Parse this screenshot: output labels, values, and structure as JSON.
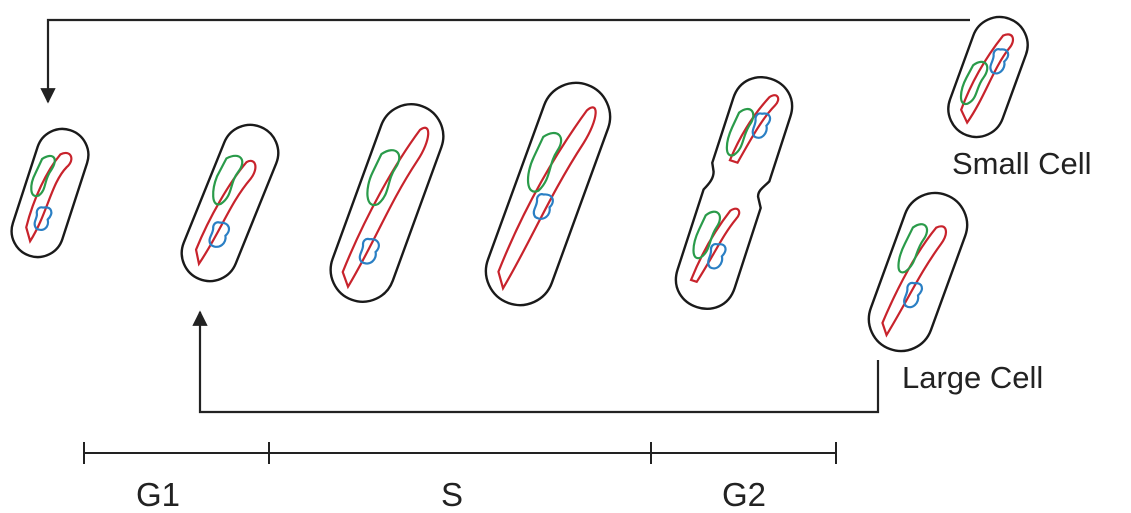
{
  "labels": {
    "small_cell": "Small Cell",
    "large_cell": "Large Cell"
  },
  "phases": [
    {
      "name": "G1"
    },
    {
      "name": "S"
    },
    {
      "name": "G2"
    }
  ],
  "colors": {
    "outline": "#1a1a1a",
    "red_chromosome": "#c8232c",
    "green_chromosome": "#2a9b4a",
    "blue_chromosome": "#2a7fc4",
    "arrow": "#222222"
  },
  "icons": {
    "arrow_head": "arrow-head-icon"
  }
}
